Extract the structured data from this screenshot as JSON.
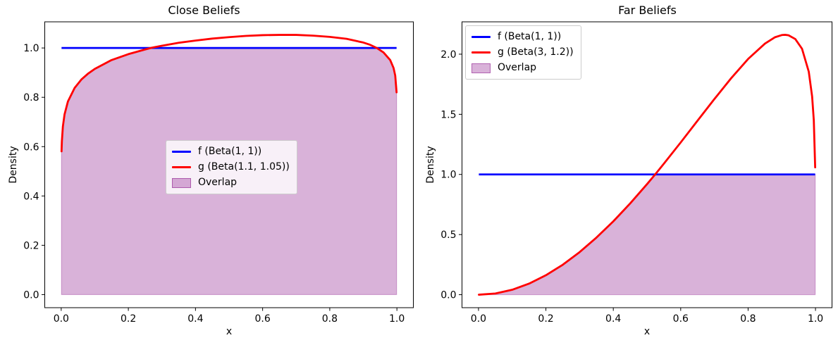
{
  "figure": {
    "background": "#ffffff",
    "text_color": "#000000"
  },
  "chart_data": [
    {
      "type": "line",
      "title": "Close Beliefs",
      "xlabel": "x",
      "ylabel": "Density",
      "xlim": [
        -0.049,
        1.049
      ],
      "ylim": [
        -0.053,
        1.106
      ],
      "xticks": [
        0.0,
        0.2,
        0.4,
        0.6,
        0.8,
        1.0
      ],
      "xtick_labels": [
        "0.0",
        "0.2",
        "0.4",
        "0.6",
        "0.8",
        "1.0"
      ],
      "yticks": [
        0.0,
        0.2,
        0.4,
        0.6,
        0.8,
        1.0
      ],
      "ytick_labels": [
        "0.0",
        "0.2",
        "0.4",
        "0.6",
        "0.8",
        "1.0"
      ],
      "grid": false,
      "legend": {
        "position": "center",
        "entries": [
          {
            "label": "f (Beta(1, 1))",
            "type": "line",
            "color": "#0000ff"
          },
          {
            "label": "g (Beta(1.1, 1.05))",
            "type": "line",
            "color": "#ff0000"
          },
          {
            "label": "Overlap",
            "type": "patch",
            "color": "#800080",
            "alpha": 0.3
          }
        ]
      },
      "series": [
        {
          "name": "f (Beta(1, 1))",
          "color": "#0000ff",
          "x": [
            0.001,
            0.999
          ],
          "y": [
            1.0,
            1.0
          ]
        },
        {
          "name": "g (Beta(1.1, 1.05))",
          "color": "#ff0000",
          "x": [
            0.001,
            0.002,
            0.005,
            0.01,
            0.02,
            0.04,
            0.06,
            0.08,
            0.1,
            0.15,
            0.2,
            0.25,
            0.27,
            0.3,
            0.35,
            0.4,
            0.45,
            0.5,
            0.55,
            0.6,
            0.65,
            0.7,
            0.75,
            0.8,
            0.85,
            0.9,
            0.92,
            0.94,
            0.96,
            0.98,
            0.99,
            0.995,
            0.999
          ],
          "y": [
            0.581,
            0.622,
            0.682,
            0.731,
            0.783,
            0.838,
            0.872,
            0.896,
            0.915,
            0.951,
            0.975,
            0.994,
            1.001,
            1.009,
            1.021,
            1.03,
            1.038,
            1.044,
            1.049,
            1.052,
            1.053,
            1.053,
            1.05,
            1.045,
            1.037,
            1.022,
            1.013,
            1.0,
            0.982,
            0.951,
            0.919,
            0.888,
            0.82
          ]
        }
      ],
      "overlap": {
        "label": "Overlap",
        "rule": "min(f,g)",
        "color": "#800080",
        "alpha": 0.3
      }
    },
    {
      "type": "line",
      "title": "Far Beliefs",
      "xlabel": "x",
      "ylabel": "Density",
      "xlim": [
        -0.049,
        1.049
      ],
      "ylim": [
        -0.108,
        2.269
      ],
      "xticks": [
        0.0,
        0.2,
        0.4,
        0.6,
        0.8,
        1.0
      ],
      "xtick_labels": [
        "0.0",
        "0.2",
        "0.4",
        "0.6",
        "0.8",
        "1.0"
      ],
      "yticks": [
        0.0,
        0.5,
        1.0,
        1.5,
        2.0
      ],
      "ytick_labels": [
        "0.0",
        "0.5",
        "1.0",
        "1.5",
        "2.0"
      ],
      "grid": false,
      "legend": {
        "position": "upper left",
        "entries": [
          {
            "label": "f (Beta(1, 1))",
            "type": "line",
            "color": "#0000ff"
          },
          {
            "label": "g (Beta(3, 1.2))",
            "type": "line",
            "color": "#ff0000"
          },
          {
            "label": "Overlap",
            "type": "patch",
            "color": "#800080",
            "alpha": 0.3
          }
        ]
      },
      "series": [
        {
          "name": "f (Beta(1, 1))",
          "color": "#0000ff",
          "x": [
            0.001,
            0.999
          ],
          "y": [
            1.0,
            1.0
          ]
        },
        {
          "name": "g (Beta(3, 1.2))",
          "color": "#ff0000",
          "x": [
            0.001,
            0.05,
            0.1,
            0.15,
            0.2,
            0.25,
            0.3,
            0.35,
            0.4,
            0.45,
            0.5,
            0.52,
            0.53,
            0.55,
            0.6,
            0.65,
            0.7,
            0.75,
            0.8,
            0.85,
            0.88,
            0.9,
            0.91,
            0.92,
            0.94,
            0.96,
            0.98,
            0.99,
            0.995,
            0.999
          ],
          "y": [
            0.0,
            0.01,
            0.041,
            0.092,
            0.162,
            0.249,
            0.354,
            0.475,
            0.61,
            0.759,
            0.919,
            0.986,
            1.02,
            1.089,
            1.266,
            1.447,
            1.627,
            1.801,
            1.96,
            2.088,
            2.141,
            2.159,
            2.161,
            2.157,
            2.126,
            2.045,
            1.855,
            1.648,
            1.449,
            1.059
          ]
        }
      ],
      "overlap": {
        "label": "Overlap",
        "rule": "min(f,g)",
        "color": "#800080",
        "alpha": 0.3
      }
    }
  ]
}
